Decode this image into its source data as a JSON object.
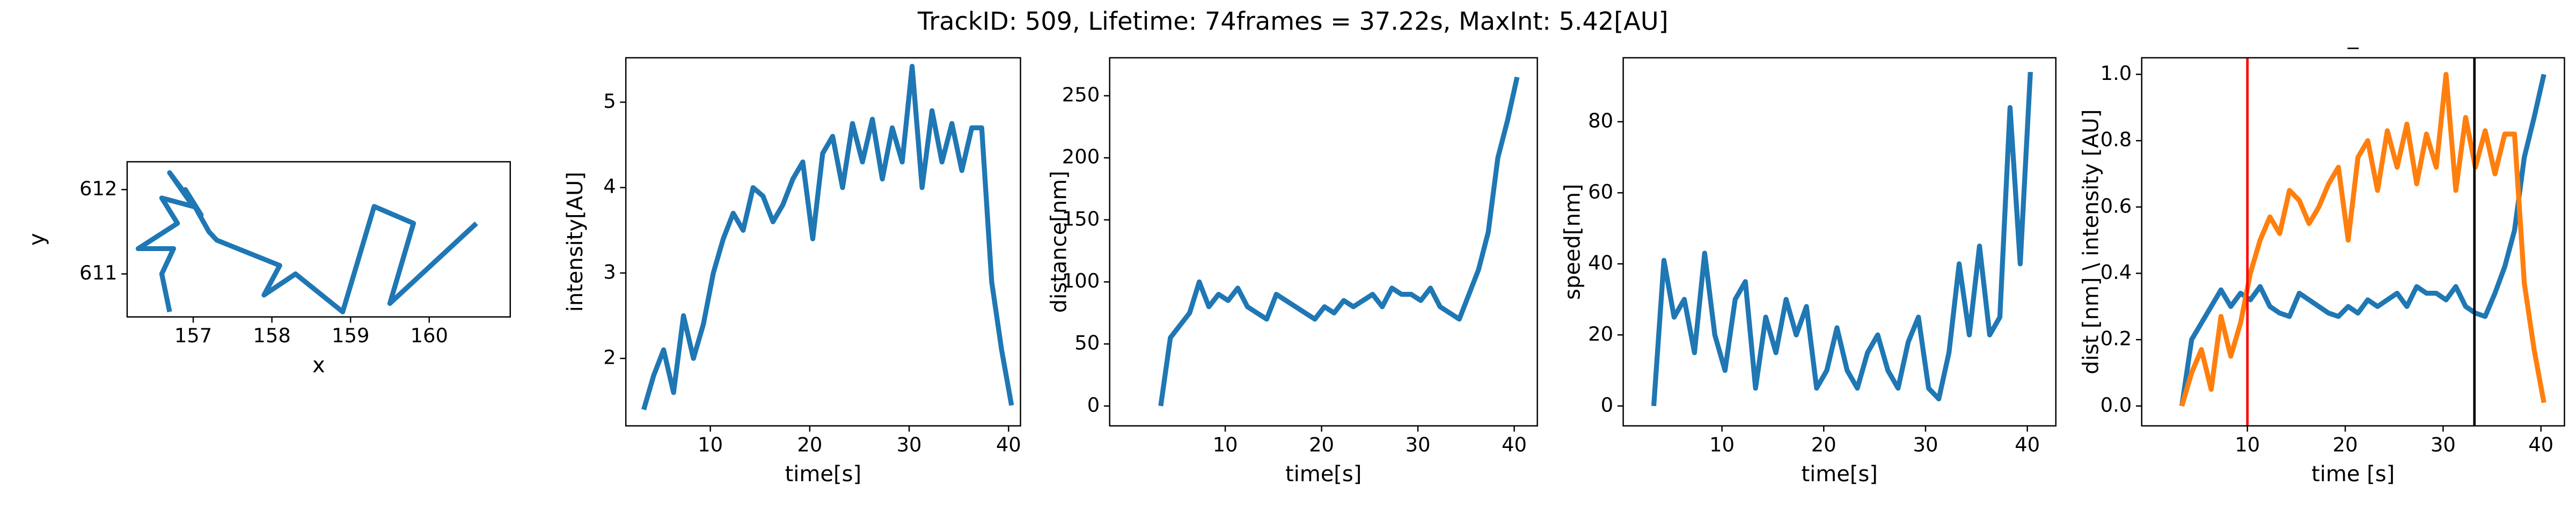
{
  "title": "TrackID: 509, Lifetime: 74frames = 37.22s, MaxInt: 5.42[AU]",
  "chart_data": [
    {
      "type": "line",
      "xlabel": "x",
      "ylabel": "y",
      "color": "#1f77b4",
      "xlim": [
        156.16,
        161.03
      ],
      "ylim": [
        610.49,
        612.33
      ],
      "xticks": [
        157,
        158,
        159,
        160
      ],
      "yticks": [
        611,
        612
      ],
      "x": [
        156.7,
        156.6,
        156.75,
        156.3,
        156.8,
        156.6,
        157.0,
        156.7,
        157.1,
        156.9,
        157.2,
        157.3,
        158.1,
        157.9,
        158.3,
        158.9,
        159.3,
        159.8,
        159.5,
        160.6
      ],
      "values": [
        610.55,
        611.0,
        611.3,
        611.3,
        611.6,
        611.9,
        611.8,
        612.2,
        611.7,
        612.0,
        611.5,
        611.4,
        611.1,
        610.75,
        611.0,
        610.55,
        611.8,
        611.6,
        610.65,
        611.6
      ]
    },
    {
      "type": "line",
      "xlabel": "time[s]",
      "ylabel": "intensity[AU]",
      "color": "#1f77b4",
      "xlim": [
        1.5,
        41.2
      ],
      "ylim": [
        1.21,
        5.52
      ],
      "xticks": [
        10,
        20,
        30,
        40
      ],
      "yticks": [
        2,
        3,
        4,
        5
      ],
      "x": [
        3.3,
        4.3,
        5.3,
        6.3,
        7.3,
        8.3,
        9.3,
        10.3,
        11.3,
        12.3,
        13.3,
        14.3,
        15.3,
        16.3,
        17.3,
        18.3,
        19.3,
        20.3,
        21.3,
        22.3,
        23.3,
        24.3,
        25.3,
        26.3,
        27.3,
        28.3,
        29.3,
        30.3,
        31.3,
        32.3,
        33.3,
        34.3,
        35.3,
        36.3,
        37.3,
        38.3,
        39.3,
        40.3
      ],
      "values": [
        1.4,
        1.8,
        2.1,
        1.6,
        2.5,
        2.0,
        2.4,
        3.0,
        3.4,
        3.7,
        3.5,
        4.0,
        3.9,
        3.6,
        3.8,
        4.1,
        4.3,
        3.4,
        4.4,
        4.6,
        4.0,
        4.75,
        4.3,
        4.8,
        4.1,
        4.7,
        4.3,
        5.42,
        4.0,
        4.9,
        4.3,
        4.75,
        4.2,
        4.7,
        4.7,
        2.9,
        2.1,
        1.45
      ]
    },
    {
      "type": "line",
      "xlabel": "time[s]",
      "ylabel": "distance[nm]",
      "color": "#1f77b4",
      "xlim": [
        -2,
        42.4
      ],
      "ylim": [
        -16,
        280.6
      ],
      "xticks": [
        10,
        20,
        30,
        40
      ],
      "yticks": [
        0,
        50,
        100,
        150,
        200,
        250
      ],
      "x": [
        3.3,
        4.3,
        5.3,
        6.3,
        7.3,
        8.3,
        9.3,
        10.3,
        11.3,
        12.3,
        13.3,
        14.3,
        15.3,
        16.3,
        17.3,
        18.3,
        19.3,
        20.3,
        21.3,
        22.3,
        23.3,
        24.3,
        25.3,
        26.3,
        27.3,
        28.3,
        29.3,
        30.3,
        31.3,
        32.3,
        33.3,
        34.3,
        35.3,
        36.3,
        37.3,
        38.3,
        39.3,
        40.3
      ],
      "values": [
        0,
        55,
        65,
        75,
        100,
        80,
        90,
        85,
        95,
        80,
        75,
        70,
        90,
        85,
        80,
        75,
        70,
        80,
        75,
        85,
        80,
        85,
        90,
        80,
        95,
        90,
        90,
        85,
        95,
        80,
        75,
        70,
        90,
        110,
        140,
        200,
        230,
        265
      ]
    },
    {
      "type": "line",
      "xlabel": "time[s]",
      "ylabel": "speed[nm]",
      "color": "#1f77b4",
      "xlim": [
        0.3,
        42.8
      ],
      "ylim": [
        -5.6,
        98
      ],
      "xticks": [
        10,
        20,
        30,
        40
      ],
      "yticks": [
        0,
        20,
        40,
        60,
        80
      ],
      "x": [
        3.3,
        4.3,
        5.3,
        6.3,
        7.3,
        8.3,
        9.3,
        10.3,
        11.3,
        12.3,
        13.3,
        14.3,
        15.3,
        16.3,
        17.3,
        18.3,
        19.3,
        20.3,
        21.3,
        22.3,
        23.3,
        24.3,
        25.3,
        26.3,
        27.3,
        28.3,
        29.3,
        30.3,
        31.3,
        32.3,
        33.3,
        34.3,
        35.3,
        36.3,
        37.3,
        38.3,
        39.3,
        40.3
      ],
      "values": [
        0,
        41,
        25,
        30,
        15,
        43,
        20,
        10,
        30,
        35,
        5,
        25,
        15,
        30,
        20,
        28,
        5,
        10,
        22,
        10,
        5,
        15,
        20,
        10,
        5,
        18,
        25,
        5,
        2,
        15,
        40,
        20,
        45,
        20,
        25,
        84,
        40,
        94
      ]
    },
    {
      "type": "line",
      "title": "_",
      "xlabel": "time [s]",
      "ylabel": "dist [nm] \\ intensity [AU]",
      "xlim": [
        -0.8,
        42.4
      ],
      "ylim": [
        -0.06,
        1.05
      ],
      "xticks": [
        10,
        20,
        30,
        40
      ],
      "yticks": [
        {
          "value": 0,
          "label": "0.0"
        },
        0.2,
        0.4,
        0.6,
        0.8,
        {
          "value": 1,
          "label": "1.0"
        }
      ],
      "x": [
        3.3,
        4.3,
        5.3,
        6.3,
        7.3,
        8.3,
        9.3,
        10.3,
        11.3,
        12.3,
        13.3,
        14.3,
        15.3,
        16.3,
        17.3,
        18.3,
        19.3,
        20.3,
        21.3,
        22.3,
        23.3,
        24.3,
        25.3,
        26.3,
        27.3,
        28.3,
        29.3,
        30.3,
        31.3,
        32.3,
        33.3,
        34.3,
        35.3,
        36.3,
        37.3,
        38.3,
        39.3,
        40.3
      ],
      "series": [
        {
          "color": "#1f77b4",
          "values": [
            0.0,
            0.2,
            0.25,
            0.3,
            0.35,
            0.3,
            0.34,
            0.32,
            0.36,
            0.3,
            0.28,
            0.27,
            0.34,
            0.32,
            0.3,
            0.28,
            0.27,
            0.3,
            0.28,
            0.32,
            0.3,
            0.32,
            0.34,
            0.3,
            0.36,
            0.34,
            0.34,
            0.32,
            0.36,
            0.3,
            0.28,
            0.27,
            0.34,
            0.42,
            0.53,
            0.75,
            0.87,
            1.0
          ]
        },
        {
          "color": "#ff7f0e",
          "values": [
            0.0,
            0.1,
            0.17,
            0.05,
            0.27,
            0.15,
            0.25,
            0.4,
            0.5,
            0.57,
            0.52,
            0.65,
            0.62,
            0.55,
            0.6,
            0.67,
            0.72,
            0.5,
            0.75,
            0.8,
            0.65,
            0.83,
            0.72,
            0.85,
            0.67,
            0.82,
            0.72,
            1.0,
            0.65,
            0.87,
            0.72,
            0.83,
            0.7,
            0.82,
            0.82,
            0.37,
            0.17,
            0.01
          ]
        }
      ],
      "vlines": [
        {
          "x": 10,
          "color": "red"
        },
        {
          "x": 33.2,
          "color": "black"
        }
      ]
    }
  ]
}
